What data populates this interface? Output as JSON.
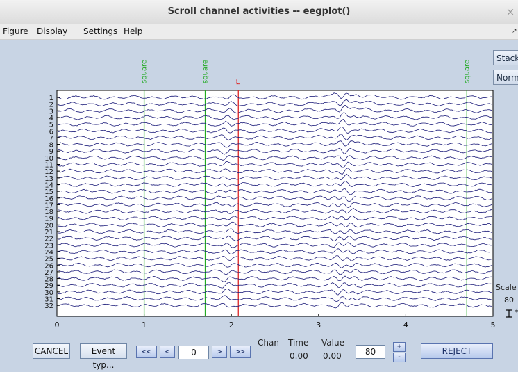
{
  "window": {
    "title": "Scroll channel activities -- eegplot()",
    "close_glyph": "×"
  },
  "menu": [
    "Figure",
    "Display",
    "Settings",
    "Help"
  ],
  "menu_dock_glyph": "↗",
  "side_buttons": {
    "stack": "Stack",
    "norm": "Norm"
  },
  "events": [
    {
      "label": "square",
      "time": 1.0,
      "color": "#22aa22"
    },
    {
      "label": "square",
      "time": 1.7,
      "color": "#22aa22"
    },
    {
      "label": "rt",
      "time": 2.08,
      "color": "#dd2222"
    },
    {
      "label": "square",
      "time": 4.7,
      "color": "#22aa22"
    }
  ],
  "channels": [
    "1",
    "2",
    "3",
    "4",
    "5",
    "6",
    "7",
    "8",
    "9",
    "10",
    "11",
    "12",
    "13",
    "14",
    "15",
    "16",
    "17",
    "18",
    "19",
    "20",
    "21",
    "22",
    "23",
    "24",
    "25",
    "26",
    "27",
    "28",
    "29",
    "30",
    "31",
    "32"
  ],
  "x_ticks": [
    "0",
    "1",
    "2",
    "3",
    "4",
    "5"
  ],
  "x_range": [
    0,
    5
  ],
  "trace_color": "#1c1c7a",
  "scale": {
    "label": "Scale",
    "value": "80",
    "marker": "+"
  },
  "controls": {
    "cancel": "CANCEL",
    "event_type": "Event typ...",
    "prev_page": "<<",
    "prev": "<",
    "time_value": "0",
    "next": ">",
    "next_page": ">>",
    "chan_label": "Chan",
    "time_label": "Time",
    "value_label": "Value",
    "time_readout": "0.00",
    "value_readout": "0.00",
    "scale_value": "80",
    "plus": "+",
    "minus": "-",
    "reject": "REJECT"
  }
}
